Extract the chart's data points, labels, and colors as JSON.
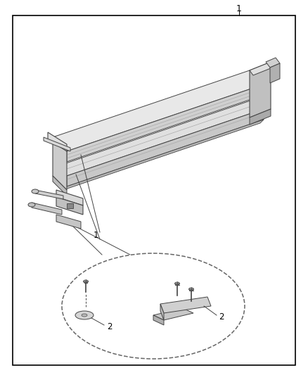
{
  "title": "1",
  "background_color": "#ffffff",
  "border_color": "#000000",
  "line_color": "#444444",
  "part_label_1": "1",
  "part_label_2": "2",
  "fig_width": 4.38,
  "fig_height": 5.33,
  "dpi": 100
}
